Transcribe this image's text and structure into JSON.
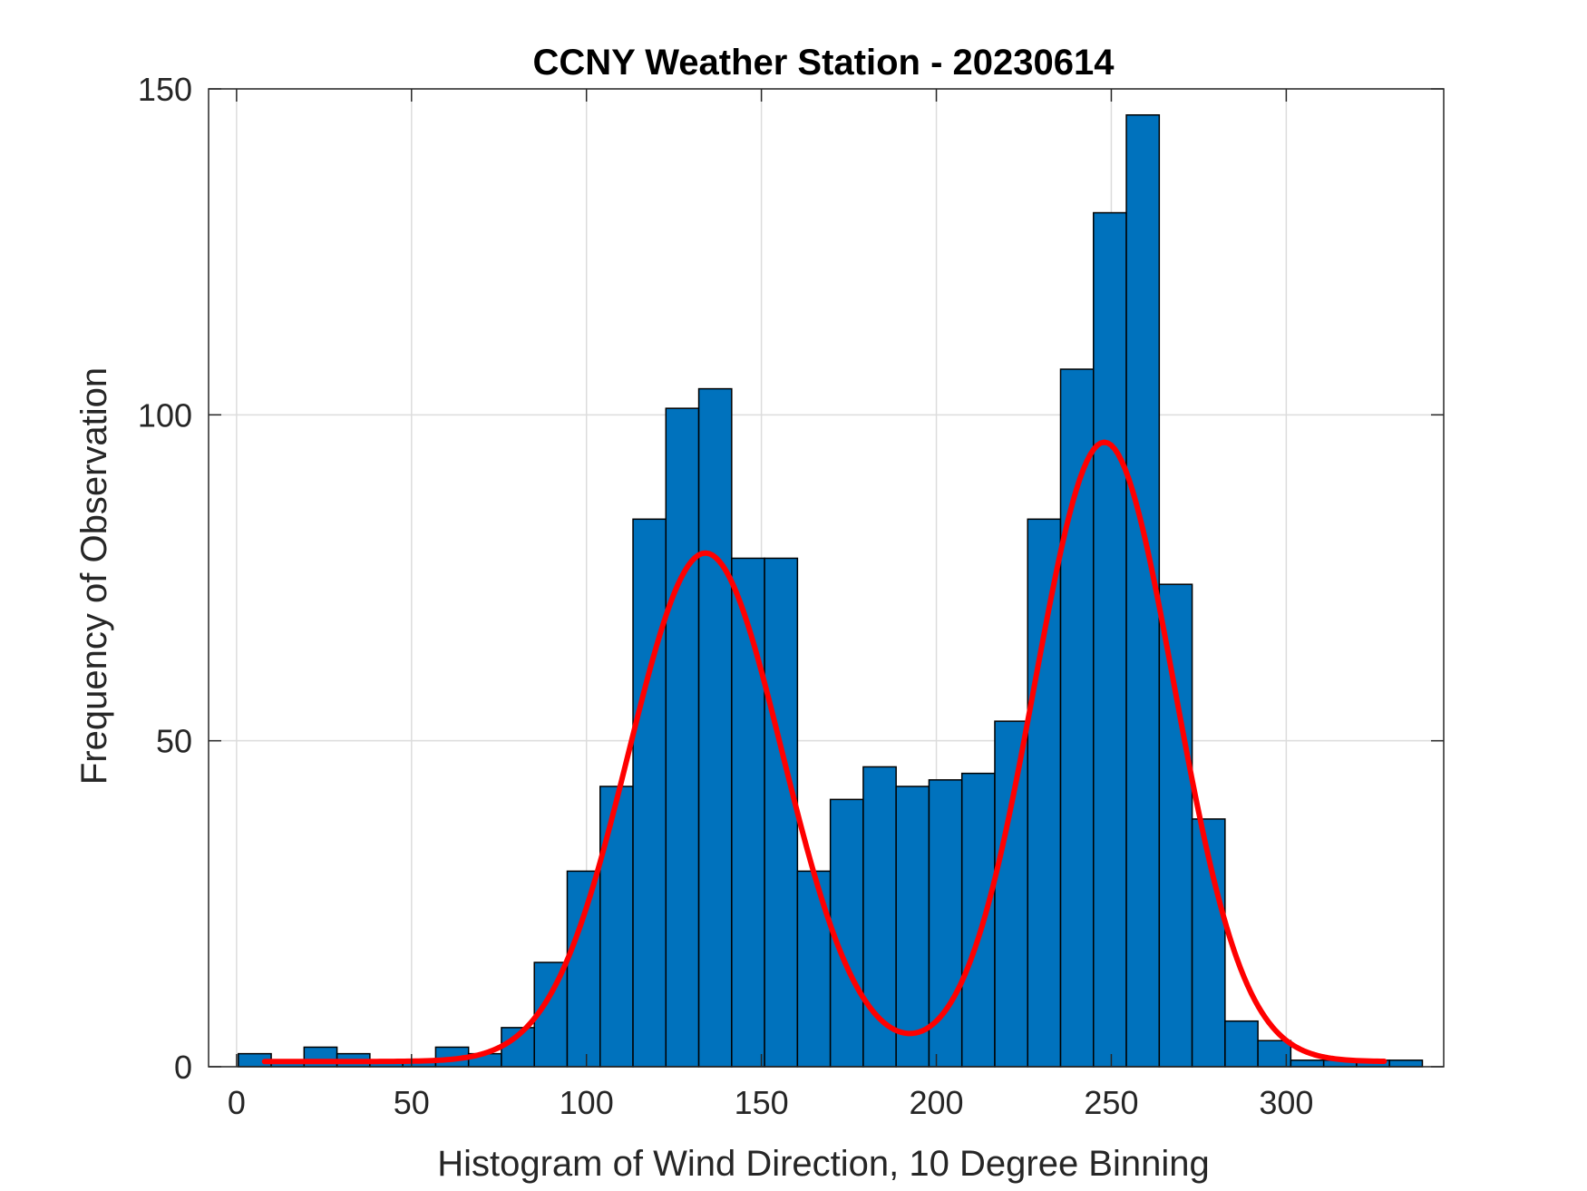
{
  "chart_data": {
    "type": "bar",
    "subtype": "histogram",
    "title": "CCNY Weather Station - 20230614",
    "xlabel": "Histogram of Wind Direction, 10 Degree Binning",
    "ylabel": "Frequency of Observation",
    "xlim": [
      -8,
      345
    ],
    "ylim": [
      0,
      150
    ],
    "grid": true,
    "bin_width": 9.4,
    "xticks": [
      0,
      50,
      100,
      150,
      200,
      250,
      300
    ],
    "yticks": [
      0,
      50,
      100,
      150
    ],
    "bins": [
      {
        "x": 0.5,
        "value": 2
      },
      {
        "x": 9.9,
        "value": 1
      },
      {
        "x": 19.3,
        "value": 3
      },
      {
        "x": 28.7,
        "value": 2
      },
      {
        "x": 38.1,
        "value": 1
      },
      {
        "x": 47.5,
        "value": 1
      },
      {
        "x": 56.9,
        "value": 3
      },
      {
        "x": 66.3,
        "value": 2
      },
      {
        "x": 75.7,
        "value": 6
      },
      {
        "x": 85.1,
        "value": 16
      },
      {
        "x": 94.5,
        "value": 30
      },
      {
        "x": 103.9,
        "value": 43
      },
      {
        "x": 113.3,
        "value": 84
      },
      {
        "x": 122.7,
        "value": 101
      },
      {
        "x": 132.1,
        "value": 104
      },
      {
        "x": 141.5,
        "value": 78
      },
      {
        "x": 150.9,
        "value": 78
      },
      {
        "x": 160.3,
        "value": 30
      },
      {
        "x": 169.7,
        "value": 41
      },
      {
        "x": 179.1,
        "value": 46
      },
      {
        "x": 188.5,
        "value": 43
      },
      {
        "x": 197.9,
        "value": 44
      },
      {
        "x": 207.3,
        "value": 45
      },
      {
        "x": 216.7,
        "value": 53
      },
      {
        "x": 226.1,
        "value": 84
      },
      {
        "x": 235.5,
        "value": 107
      },
      {
        "x": 244.9,
        "value": 131
      },
      {
        "x": 254.3,
        "value": 146
      },
      {
        "x": 263.7,
        "value": 74
      },
      {
        "x": 273.1,
        "value": 38
      },
      {
        "x": 282.5,
        "value": 7
      },
      {
        "x": 291.9,
        "value": 4
      },
      {
        "x": 301.3,
        "value": 1
      },
      {
        "x": 310.7,
        "value": 1
      },
      {
        "x": 320.1,
        "value": 1
      },
      {
        "x": 329.5,
        "value": 1
      }
    ],
    "fit": {
      "name": "two-component fit",
      "x_range": [
        8,
        328
      ],
      "components": [
        {
          "amplitude": 78,
          "mean": 134,
          "sigma": 22
        },
        {
          "amplitude": 95,
          "mean": 248,
          "sigma": 20
        }
      ],
      "baseline": 0.8
    },
    "colors": {
      "bar_fill": "#0072BD",
      "bar_edge": "#000000",
      "fit_line": "#FF0000",
      "grid": "#DCDCDC",
      "axes": "#262626"
    }
  }
}
